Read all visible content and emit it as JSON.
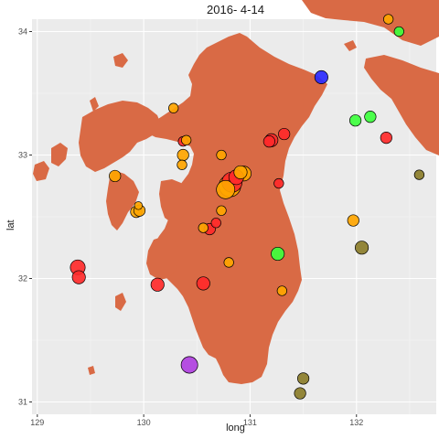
{
  "chart_data": {
    "type": "scatter",
    "title": "2016- 4-14",
    "xlabel": "long",
    "ylabel": "lat",
    "xlim": [
      128.95,
      132.75
    ],
    "ylim": [
      30.9,
      34.1
    ],
    "x_ticks": [
      129,
      130,
      131,
      132
    ],
    "x_tick_labels": [
      "129",
      "130",
      "131",
      "132"
    ],
    "y_ticks": [
      31,
      32,
      33,
      34
    ],
    "y_tick_labels": [
      "31",
      "32",
      "33",
      "34"
    ],
    "grid": true,
    "legend": "none",
    "colors": {
      "panel_background": "#ebebeb",
      "land": "#d96a45",
      "orange": "#ffa500",
      "red": "#ff2a2a",
      "green": "#3dff3d",
      "blue": "#2a2aff",
      "purple": "#b040e0",
      "olive": "#8b7d2a"
    },
    "points": [
      {
        "x": 132.3,
        "y": 34.1,
        "size": 4,
        "color": "orange"
      },
      {
        "x": 132.4,
        "y": 34.0,
        "size": 4,
        "color": "green"
      },
      {
        "x": 131.67,
        "y": 33.63,
        "size": 6,
        "color": "blue"
      },
      {
        "x": 131.99,
        "y": 33.28,
        "size": 5,
        "color": "green"
      },
      {
        "x": 132.13,
        "y": 33.31,
        "size": 5,
        "color": "green"
      },
      {
        "x": 132.28,
        "y": 33.14,
        "size": 5,
        "color": "red"
      },
      {
        "x": 132.59,
        "y": 32.84,
        "size": 4,
        "color": "olive"
      },
      {
        "x": 130.28,
        "y": 33.38,
        "size": 4,
        "color": "orange"
      },
      {
        "x": 130.37,
        "y": 33.11,
        "size": 4,
        "color": "red"
      },
      {
        "x": 130.4,
        "y": 33.12,
        "size": 4,
        "color": "orange"
      },
      {
        "x": 130.37,
        "y": 33.0,
        "size": 5,
        "color": "orange"
      },
      {
        "x": 130.36,
        "y": 32.92,
        "size": 4,
        "color": "orange"
      },
      {
        "x": 130.73,
        "y": 33.0,
        "size": 4,
        "color": "orange"
      },
      {
        "x": 131.2,
        "y": 33.12,
        "size": 6,
        "color": "red"
      },
      {
        "x": 131.18,
        "y": 33.11,
        "size": 5,
        "color": "red"
      },
      {
        "x": 131.32,
        "y": 33.17,
        "size": 5,
        "color": "red"
      },
      {
        "x": 129.73,
        "y": 32.83,
        "size": 5,
        "color": "orange"
      },
      {
        "x": 130.91,
        "y": 32.86,
        "size": 6,
        "color": "orange"
      },
      {
        "x": 130.94,
        "y": 32.85,
        "size": 7,
        "color": "orange"
      },
      {
        "x": 130.87,
        "y": 32.82,
        "size": 7,
        "color": "red"
      },
      {
        "x": 130.83,
        "y": 32.78,
        "size": 10,
        "color": "red"
      },
      {
        "x": 130.77,
        "y": 32.72,
        "size": 9,
        "color": "orange"
      },
      {
        "x": 130.81,
        "y": 32.75,
        "size": 11,
        "color": "orange"
      },
      {
        "x": 131.27,
        "y": 32.77,
        "size": 4,
        "color": "red"
      },
      {
        "x": 130.73,
        "y": 32.55,
        "size": 4,
        "color": "orange"
      },
      {
        "x": 130.68,
        "y": 32.45,
        "size": 4,
        "color": "red"
      },
      {
        "x": 130.62,
        "y": 32.4,
        "size": 5,
        "color": "red"
      },
      {
        "x": 130.56,
        "y": 32.41,
        "size": 4,
        "color": "orange"
      },
      {
        "x": 129.93,
        "y": 32.54,
        "size": 5,
        "color": "orange"
      },
      {
        "x": 129.96,
        "y": 32.55,
        "size": 5,
        "color": "orange"
      },
      {
        "x": 129.95,
        "y": 32.59,
        "size": 3,
        "color": "orange"
      },
      {
        "x": 130.8,
        "y": 32.13,
        "size": 4,
        "color": "orange"
      },
      {
        "x": 131.26,
        "y": 32.2,
        "size": 6,
        "color": "green"
      },
      {
        "x": 131.97,
        "y": 32.47,
        "size": 5,
        "color": "orange"
      },
      {
        "x": 132.05,
        "y": 32.25,
        "size": 6,
        "color": "olive"
      },
      {
        "x": 129.38,
        "y": 32.09,
        "size": 7,
        "color": "red"
      },
      {
        "x": 129.39,
        "y": 32.01,
        "size": 6,
        "color": "red"
      },
      {
        "x": 130.13,
        "y": 31.95,
        "size": 6,
        "color": "red"
      },
      {
        "x": 130.56,
        "y": 31.96,
        "size": 6,
        "color": "red"
      },
      {
        "x": 131.3,
        "y": 31.9,
        "size": 4,
        "color": "orange"
      },
      {
        "x": 130.43,
        "y": 31.3,
        "size": 8,
        "color": "purple"
      },
      {
        "x": 131.5,
        "y": 31.19,
        "size": 5,
        "color": "olive"
      },
      {
        "x": 131.47,
        "y": 31.07,
        "size": 5,
        "color": "olive"
      }
    ]
  }
}
